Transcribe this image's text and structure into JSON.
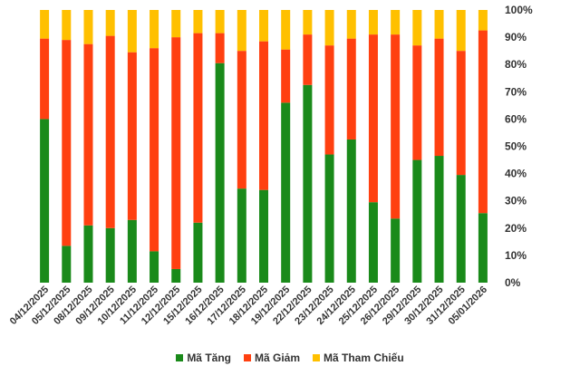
{
  "chart_data": {
    "type": "bar",
    "stacked": true,
    "percent": true,
    "categories": [
      "04/12/2025",
      "05/12/2025",
      "08/12/2025",
      "09/12/2025",
      "10/12/2025",
      "11/12/2025",
      "12/12/2025",
      "15/12/2025",
      "16/12/2025",
      "17/12/2025",
      "18/12/2025",
      "19/12/2025",
      "22/12/2025",
      "23/12/2025",
      "24/12/2025",
      "25/12/2025",
      "26/12/2025",
      "29/12/2025",
      "30/12/2025",
      "31/12/2025",
      "05/01/2026"
    ],
    "series": [
      {
        "name": "Mã Tăng",
        "color": "#1a8a1a",
        "values": [
          60,
          13.5,
          21,
          20,
          23,
          11.5,
          5,
          22,
          80.5,
          34.5,
          34,
          66,
          72.5,
          47,
          52.5,
          29.5,
          23.5,
          45,
          46.5,
          39.5,
          25.5
        ]
      },
      {
        "name": "Mã Giảm",
        "color": "#ff4010",
        "values": [
          29.5,
          75.5,
          66.5,
          70.5,
          61.5,
          74.5,
          85,
          69.5,
          11,
          50.5,
          54.5,
          19.5,
          18.5,
          40,
          37,
          61.5,
          67.5,
          42,
          43,
          45.5,
          67
        ]
      },
      {
        "name": "Mã Tham Chiếu",
        "color": "#ffc000",
        "values": [
          10.5,
          11,
          12.5,
          9.5,
          15.5,
          14,
          10,
          8.5,
          8.5,
          15,
          11.5,
          14.5,
          9,
          13,
          10.5,
          9,
          9,
          13,
          10.5,
          15,
          7.5
        ]
      }
    ],
    "y_ticks": [
      "0%",
      "10%",
      "20%",
      "30%",
      "40%",
      "50%",
      "60%",
      "70%",
      "80%",
      "90%",
      "100%"
    ],
    "ylim": [
      0,
      100
    ],
    "grid": false,
    "legend_position": "bottom"
  }
}
